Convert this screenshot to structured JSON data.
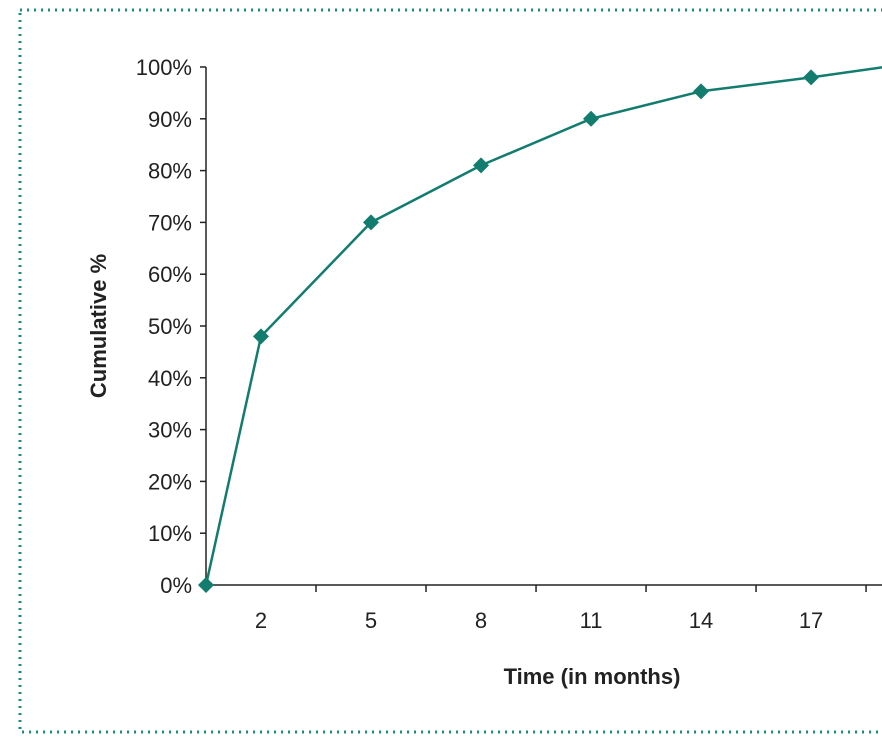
{
  "colors": {
    "series": "#127d6e",
    "frame": "#1b8f7a",
    "axis": "#222222"
  },
  "chart_data": {
    "type": "line",
    "title": "",
    "xlabel": "Time (in months)",
    "ylabel": "Cumulative %",
    "x_ticks": [
      2,
      5,
      8,
      11,
      14,
      17
    ],
    "y_ticks": [
      "0%",
      "10%",
      "20%",
      "30%",
      "40%",
      "50%",
      "60%",
      "70%",
      "80%",
      "90%",
      "100%"
    ],
    "ylim": [
      0,
      100
    ],
    "grid": false,
    "legend": "none",
    "series": [
      {
        "x": [
          0.5,
          2,
          5,
          8,
          11,
          14,
          17,
          19
        ],
        "y": [
          0,
          48,
          70,
          81,
          90,
          95.3,
          98,
          100
        ],
        "marker": "diamond"
      }
    ]
  }
}
